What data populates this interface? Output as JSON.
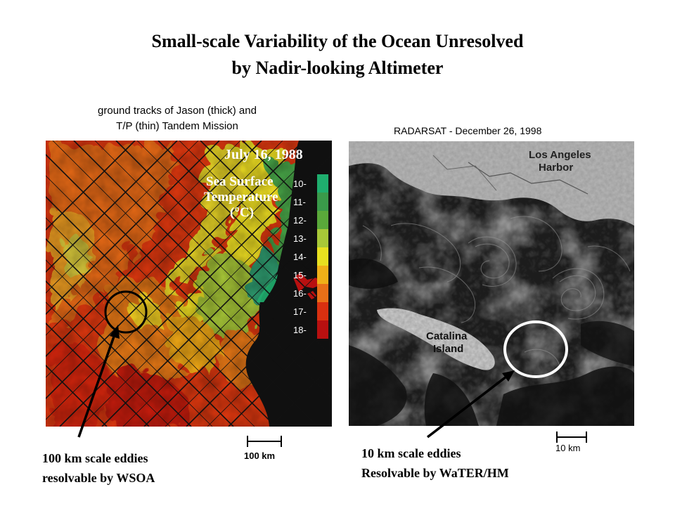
{
  "title": {
    "line1": "Small-scale Variability of the Ocean Unresolved",
    "line2": "by Nadir-looking Altimeter"
  },
  "left_panel": {
    "caption_line1": "ground tracks of Jason (thick) and",
    "caption_line2": "T/P (thin) Tandem Mission",
    "date_label": "July 16, 1988",
    "legend_title_1": "Sea Surface",
    "legend_title_2": "Temperature",
    "legend_unit": "(°C)",
    "legend_ticks": [
      "10-",
      "11-",
      "12-",
      "13-",
      "14-",
      "15-",
      "16-",
      "17-",
      "18-"
    ],
    "legend_colors": [
      "#1fae6e",
      "#3a9a4a",
      "#5aa83a",
      "#a8c838",
      "#e8e020",
      "#f0b018",
      "#e87018",
      "#d83010",
      "#b81010"
    ],
    "scale_label": "100 km",
    "eddy_label_line1": "100 km scale eddies",
    "eddy_label_line2": "resolvable by WSOA"
  },
  "right_panel": {
    "caption": "RADARSAT - December 26, 1998",
    "harbor_label_line1": "Los Angeles",
    "harbor_label_line2": "Harbor",
    "island_label_line1": "Catalina",
    "island_label_line2": "Island",
    "scale_label": "10 km",
    "eddy_label_line1": "10 km scale eddies",
    "eddy_label_line2": "Resolvable by WaTER/HM"
  }
}
